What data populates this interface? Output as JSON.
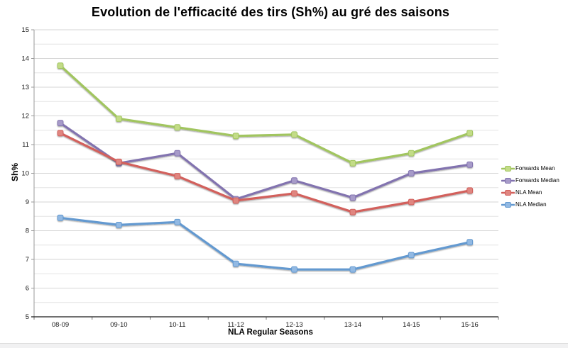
{
  "chart_data": {
    "type": "line",
    "title": "Evolution de l'efficacité des tirs (Sh%) au gré des saisons",
    "xlabel": "NLA Regular Seasons",
    "ylabel": "Sh%",
    "categories": [
      "08-09",
      "09-10",
      "10-11",
      "11-12",
      "12-13",
      "13-14",
      "14-15",
      "15-16"
    ],
    "ylim": [
      5,
      15
    ],
    "ytick_step": 1,
    "minor_gridline_step": 0.5,
    "grid": true,
    "legend_position": "right",
    "colors": {
      "gridline_major": "#d6d6d6",
      "gridline_minor": "#e3e3e3",
      "y_axis_line": "#9a9a9a",
      "x_axis_line": "#1a1a1a",
      "tick_label": "#1a1a1a"
    },
    "series": [
      {
        "name": "Forwards Mean",
        "color": "#a1c55f",
        "marker_fill": "#c3dc87",
        "values": [
          13.75,
          11.9,
          11.6,
          11.3,
          11.35,
          10.35,
          10.7,
          11.4
        ]
      },
      {
        "name": "Forwards Median",
        "color": "#8273af",
        "marker_fill": "#a79bc9",
        "values": [
          11.75,
          10.35,
          10.7,
          9.1,
          9.75,
          9.15,
          10.0,
          10.3
        ]
      },
      {
        "name": "NLA Mean",
        "color": "#d2605c",
        "marker_fill": "#e08680",
        "values": [
          11.4,
          10.4,
          9.9,
          9.05,
          9.3,
          8.65,
          9.0,
          9.4
        ]
      },
      {
        "name": "NLA Median",
        "color": "#6399d0",
        "marker_fill": "#92b9e3",
        "values": [
          8.45,
          8.2,
          8.3,
          6.85,
          6.65,
          6.65,
          7.15,
          7.6
        ]
      }
    ]
  }
}
